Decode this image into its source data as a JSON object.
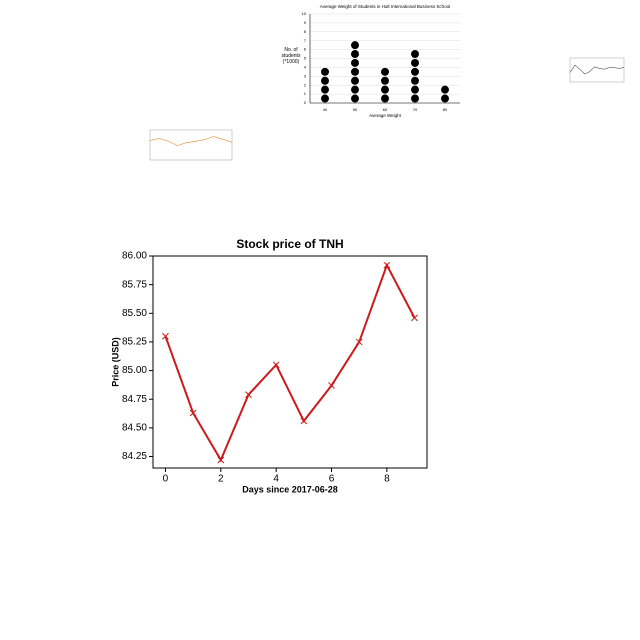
{
  "chart_data": [
    {
      "type": "dot",
      "title": "Average Weight of Students in Hult International Business School",
      "x_label": "Average Weight",
      "y_label": "No. of students (*1000)",
      "categories": [
        "40",
        "50",
        "60",
        "70",
        "80"
      ],
      "values": [
        4,
        7,
        4,
        6,
        2
      ],
      "color": "#000000",
      "ylim": [
        0,
        10
      ],
      "yticks": [
        0,
        1,
        2,
        3,
        4,
        5,
        6,
        7,
        8,
        9,
        10
      ],
      "grid": true
    },
    {
      "type": "line",
      "x": [
        0,
        1,
        2,
        3,
        4,
        5,
        6,
        7,
        8,
        9,
        10,
        11
      ],
      "values": [
        5.2,
        6.1,
        5.6,
        5.0,
        5.3,
        5.9,
        5.7,
        5.6,
        5.8,
        5.8,
        5.7,
        5.8
      ],
      "color": "#555555",
      "xlim": [
        0,
        11
      ],
      "ylim": [
        4,
        7
      ]
    },
    {
      "type": "line",
      "x": [
        0,
        1,
        2,
        3,
        4,
        5,
        6,
        7,
        8,
        9
      ],
      "values": [
        6.5,
        7.2,
        6.3,
        4.8,
        5.8,
        6.2,
        6.8,
        7.8,
        6.9,
        5.9
      ],
      "color": "#e8862a",
      "xlim": [
        0,
        9
      ],
      "ylim": [
        0,
        10
      ]
    },
    {
      "type": "line",
      "title": "Stock price of TNH",
      "x_label": "Days since 2017-06-28",
      "y_label": "Price (USD)",
      "x": [
        0,
        1,
        2,
        3,
        4,
        5,
        6,
        7,
        8,
        9
      ],
      "values": [
        85.3,
        84.63,
        84.22,
        84.79,
        85.05,
        84.56,
        84.87,
        85.25,
        85.92,
        85.46
      ],
      "color": "#cc1a1a",
      "marker": "x",
      "xlim": [
        -0.45,
        9.45
      ],
      "xticks": [
        0,
        2,
        4,
        6,
        8
      ],
      "ylim": [
        84.15,
        86.0
      ],
      "yticks": [
        {
          "value": 84.25,
          "label": "84.25"
        },
        {
          "value": 84.5,
          "label": "84.50"
        },
        {
          "value": 84.75,
          "label": "84.75"
        },
        {
          "value": 85.0,
          "label": "85.00"
        },
        {
          "value": 85.25,
          "label": "85.25"
        },
        {
          "value": 85.5,
          "label": "85.50"
        },
        {
          "value": 85.75,
          "label": "85.75"
        },
        {
          "value": 86.0,
          "label": "86.00"
        }
      ]
    }
  ]
}
